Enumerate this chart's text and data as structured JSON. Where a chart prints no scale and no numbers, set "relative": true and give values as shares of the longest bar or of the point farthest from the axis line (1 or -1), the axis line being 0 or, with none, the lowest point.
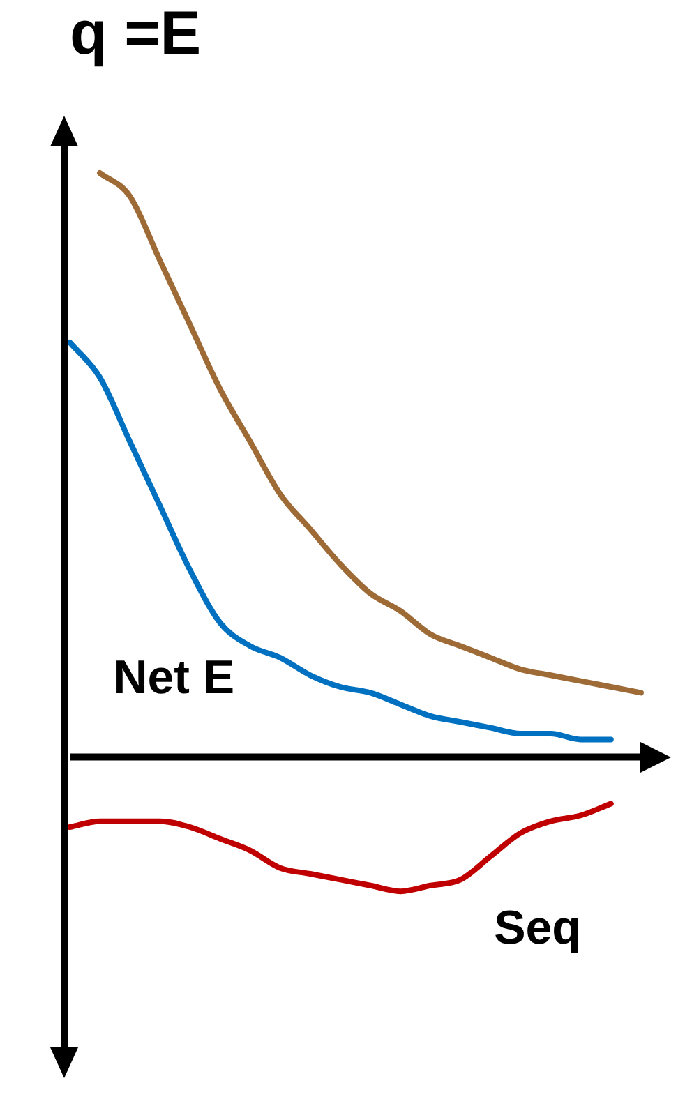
{
  "chart_data": {
    "type": "line",
    "title": "q =E",
    "relative": true,
    "legend": false,
    "marker": "none",
    "line_style": "solid",
    "categories": [
      null,
      null,
      null,
      null,
      null,
      null,
      null,
      null,
      null,
      null,
      null,
      null,
      null,
      null,
      null,
      null,
      null,
      null,
      null,
      null,
      null
    ],
    "series": [
      {
        "color": "#9e6b37",
        "values": [
          null,
          1.0,
          0.96,
          0.85,
          0.74,
          0.63,
          0.54,
          0.45,
          0.39,
          0.33,
          0.28,
          0.25,
          0.21,
          0.19,
          0.17,
          0.15,
          0.14,
          0.13,
          0.12,
          0.11,
          null
        ]
      },
      {
        "name": "Net E",
        "color": "#0070c0",
        "values": [
          0.71,
          0.65,
          0.54,
          0.43,
          0.32,
          0.23,
          0.19,
          0.17,
          0.14,
          0.12,
          0.11,
          0.09,
          0.07,
          0.06,
          0.05,
          0.04,
          0.04,
          0.03,
          0.03,
          null,
          null
        ]
      },
      {
        "name": "Seq",
        "color": "#c00000",
        "values": [
          -0.12,
          -0.11,
          -0.11,
          -0.11,
          -0.12,
          -0.14,
          -0.16,
          -0.19,
          -0.2,
          -0.21,
          -0.22,
          -0.23,
          -0.22,
          -0.21,
          -0.17,
          -0.13,
          -0.11,
          -0.1,
          -0.08,
          null,
          null
        ]
      }
    ]
  }
}
